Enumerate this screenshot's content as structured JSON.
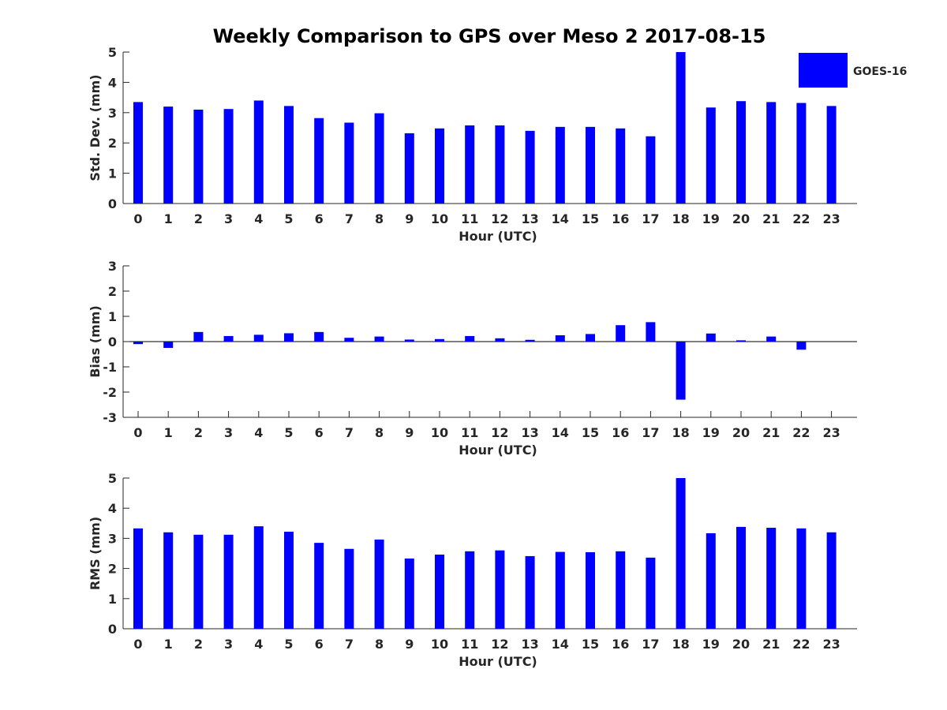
{
  "figure": {
    "title": "Weekly Comparison to GPS over Meso 2 2017-08-15"
  },
  "legend": {
    "label": "GOES-16",
    "color": "#0000ff",
    "placement": "top-right"
  },
  "colors": {
    "bar": "#0000ff",
    "axis": "#262626",
    "title": "#000000"
  },
  "chart_data": [
    {
      "type": "bar",
      "name": "std-dev-panel",
      "categories": [
        "0",
        "1",
        "2",
        "3",
        "4",
        "5",
        "6",
        "7",
        "8",
        "9",
        "10",
        "11",
        "12",
        "13",
        "14",
        "15",
        "16",
        "17",
        "18",
        "19",
        "20",
        "21",
        "22",
        "23"
      ],
      "series": [
        {
          "name": "GOES-16",
          "values": [
            3.35,
            3.2,
            3.1,
            3.12,
            3.4,
            3.22,
            2.82,
            2.67,
            2.98,
            2.32,
            2.48,
            2.58,
            2.58,
            2.4,
            2.53,
            2.53,
            2.48,
            2.22,
            5.0,
            3.17,
            3.38,
            3.35,
            3.32,
            3.22
          ]
        }
      ],
      "xlabel": "Hour (UTC)",
      "ylabel": "Std. Dev. (mm)",
      "ylim": [
        0,
        5
      ],
      "yticks": [
        "0",
        "1",
        "2",
        "3",
        "4",
        "5"
      ],
      "title": ""
    },
    {
      "type": "bar",
      "name": "bias-panel",
      "categories": [
        "0",
        "1",
        "2",
        "3",
        "4",
        "5",
        "6",
        "7",
        "8",
        "9",
        "10",
        "11",
        "12",
        "13",
        "14",
        "15",
        "16",
        "17",
        "18",
        "19",
        "20",
        "21",
        "22",
        "23"
      ],
      "series": [
        {
          "name": "GOES-16",
          "values": [
            -0.1,
            -0.25,
            0.38,
            0.22,
            0.27,
            0.33,
            0.38,
            0.15,
            0.2,
            0.08,
            0.1,
            0.22,
            0.13,
            0.07,
            0.25,
            0.3,
            0.65,
            0.77,
            -2.3,
            0.32,
            0.05,
            0.2,
            -0.32,
            0.0
          ]
        }
      ],
      "xlabel": "Hour (UTC)",
      "ylabel": "Bias (mm)",
      "ylim": [
        -3,
        3
      ],
      "yticks": [
        "-3",
        "-2",
        "-1",
        "0",
        "1",
        "2",
        "3"
      ],
      "title": ""
    },
    {
      "type": "bar",
      "name": "rms-panel",
      "categories": [
        "0",
        "1",
        "2",
        "3",
        "4",
        "5",
        "6",
        "7",
        "8",
        "9",
        "10",
        "11",
        "12",
        "13",
        "14",
        "15",
        "16",
        "17",
        "18",
        "19",
        "20",
        "21",
        "22",
        "23"
      ],
      "series": [
        {
          "name": "GOES-16",
          "values": [
            3.33,
            3.2,
            3.12,
            3.12,
            3.4,
            3.22,
            2.85,
            2.65,
            2.96,
            2.33,
            2.46,
            2.57,
            2.6,
            2.41,
            2.55,
            2.54,
            2.57,
            2.36,
            5.0,
            3.17,
            3.38,
            3.35,
            3.33,
            3.2
          ]
        }
      ],
      "xlabel": "Hour (UTC)",
      "ylabel": "RMS (mm)",
      "ylim": [
        0,
        5
      ],
      "yticks": [
        "0",
        "1",
        "2",
        "3",
        "4",
        "5"
      ],
      "title": ""
    }
  ]
}
